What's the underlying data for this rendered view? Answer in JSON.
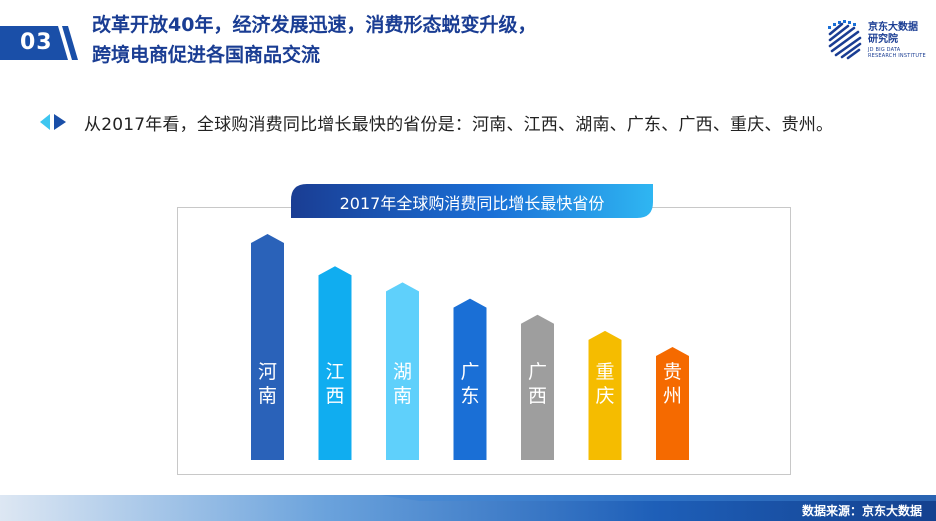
{
  "header": {
    "section_number": "03",
    "title_line1": "改革开放40年，经济发展迅速，消费形态蜕变升级，",
    "title_line2": "跨境电商促进各国商品交流",
    "accent_color": "#1a3d93"
  },
  "logo": {
    "name_cn_line1": "京东大数据",
    "name_cn_line2": "研究院",
    "name_en_line1": "JD BIG DATA",
    "name_en_line2": "RESEARCH INSTITUTE",
    "icon": "jd-big-data-logo-icon"
  },
  "bullet": {
    "icon": "triangle-bullet-icon",
    "text": "从2017年看，全球购消费同比增长最快的省份是：河南、江西、湖南、广东、广西、重庆、贵州。"
  },
  "chart_data": {
    "type": "bar",
    "title": "2017年全球购消费同比增长最快省份",
    "categories": [
      "河南",
      "江西",
      "湖南",
      "广东",
      "广西",
      "重庆",
      "贵州"
    ],
    "values": [
      7,
      6,
      5.5,
      5,
      4.5,
      4,
      3.5
    ],
    "colors": [
      "#2a62b9",
      "#10adf0",
      "#5fd0fb",
      "#1a6fd6",
      "#9e9e9e",
      "#f5bc00",
      "#f56a00"
    ],
    "note": "bars are ranked by growth, no numeric axis shown"
  },
  "footer": {
    "source": "数据来源：京东大数据"
  }
}
